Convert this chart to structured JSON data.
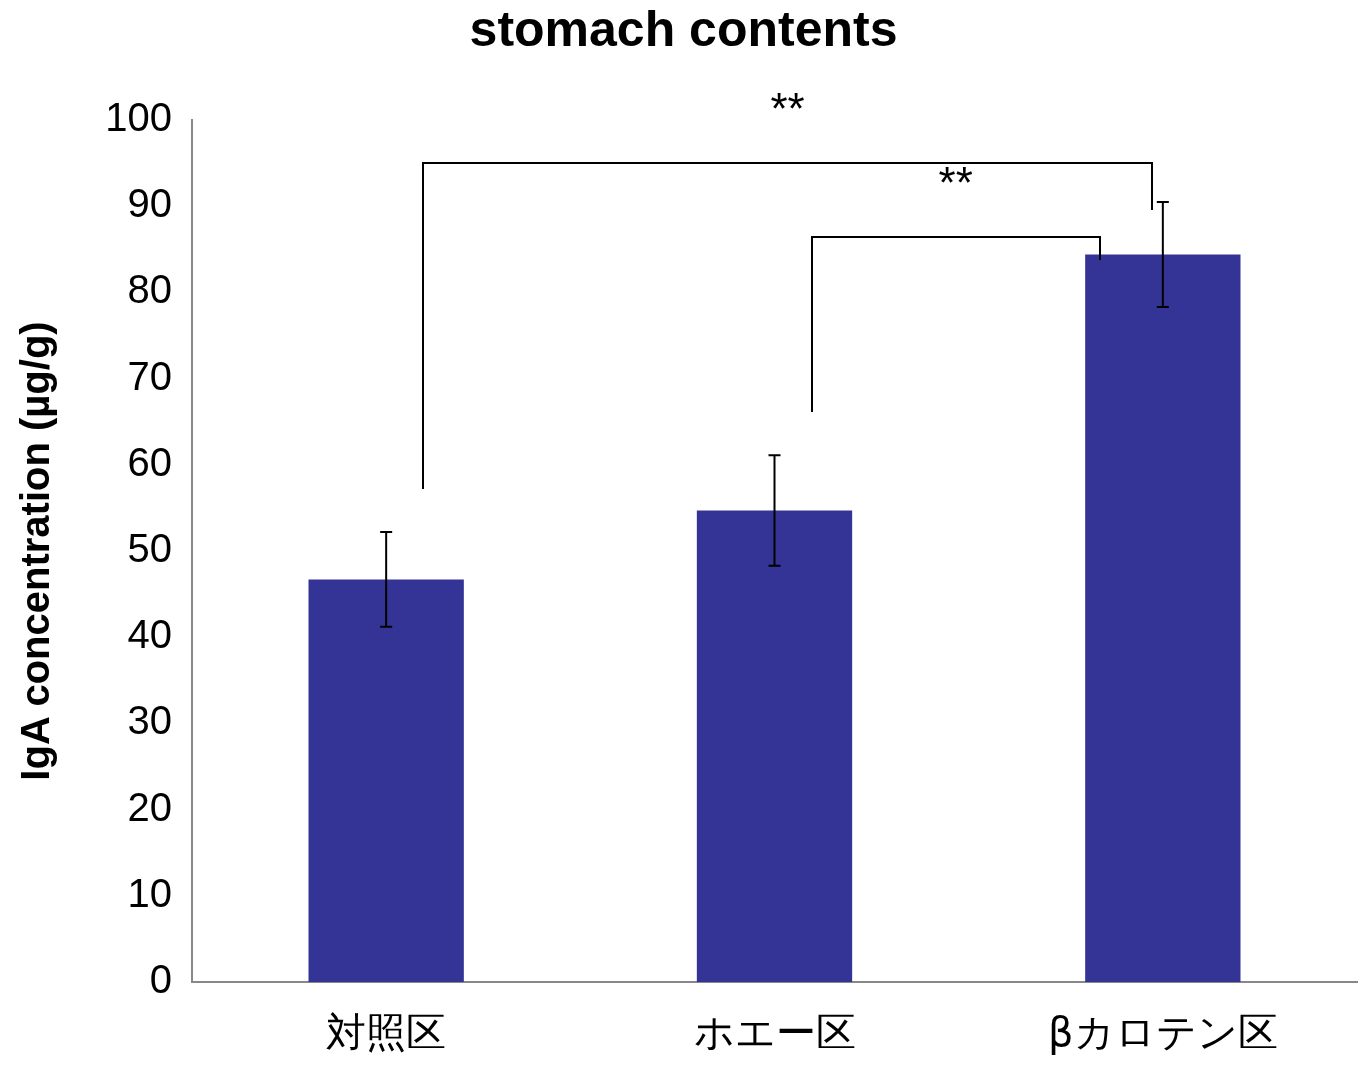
{
  "chart_data": {
    "type": "bar",
    "title": "stomach contents",
    "ylabel": "IgA concentration (µg/g)",
    "categories": [
      "対照区",
      "ホエー区",
      "βカロテン区"
    ],
    "values": [
      46.7,
      54.7,
      84.4
    ],
    "errors": [
      5.5,
      6.4,
      6.1
    ],
    "color": "#343496",
    "ylim": [
      0,
      100
    ],
    "yticks": [
      0,
      10,
      20,
      30,
      40,
      50,
      60,
      70,
      80,
      90,
      100
    ],
    "grid": false,
    "legend": false,
    "annotations": [
      "**",
      "**"
    ]
  }
}
